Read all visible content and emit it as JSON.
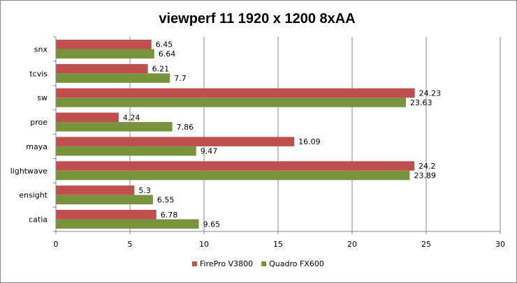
{
  "chart_data": {
    "type": "bar",
    "orientation": "horizontal",
    "title": "viewperf 11 1920 x 1200 8xAA",
    "categories": [
      "snx",
      "tcvis",
      "sw",
      "proe",
      "maya",
      "lightwave",
      "ensight",
      "catia"
    ],
    "series": [
      {
        "name": "FirePro V3800",
        "color": "#c0504d",
        "values": [
          6.45,
          6.21,
          24.23,
          4.24,
          16.09,
          24.2,
          5.3,
          6.78
        ]
      },
      {
        "name": "Quadro FX600",
        "color": "#77933c",
        "values": [
          6.64,
          7.7,
          23.63,
          7.86,
          9.47,
          23.89,
          6.55,
          9.65
        ]
      }
    ],
    "xlim": [
      0,
      30
    ],
    "x_ticks": [
      0,
      5,
      10,
      15,
      20,
      25,
      30
    ],
    "grid": "vertical",
    "legend_position": "bottom"
  }
}
